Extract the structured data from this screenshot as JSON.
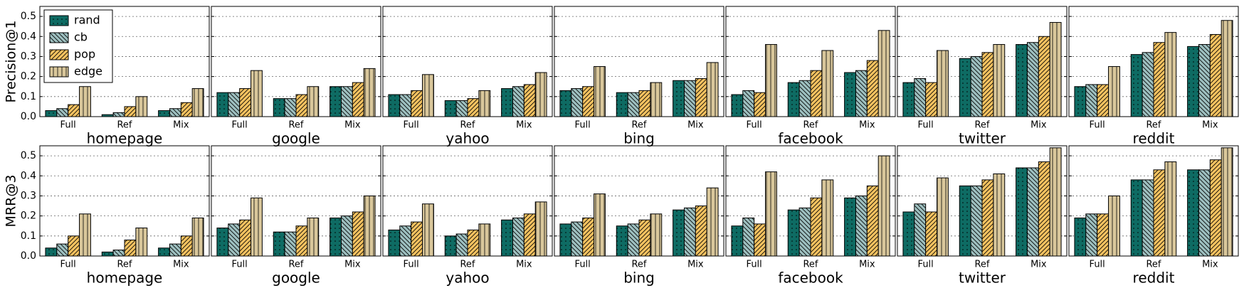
{
  "chart_data": [
    {
      "type": "bar",
      "ylabel": "Precision@1",
      "xlabel": "homepage",
      "legend": "upper left",
      "grid": true,
      "ylim": [
        0,
        0.55
      ],
      "yticks": [
        {
          "value": 0,
          "label": "0.0"
        },
        0.1,
        0.2,
        0.3,
        0.4,
        0.5
      ],
      "ytick_labels": true,
      "categories": [
        "Full",
        "Ref",
        "Mix"
      ],
      "series": [
        {
          "name": "rand",
          "color": "#0e6b63",
          "hatch": "dots",
          "values": [
            0.03,
            0.01,
            0.03
          ]
        },
        {
          "name": "cb",
          "color": "#9dbfbf",
          "hatch": "backslash",
          "values": [
            0.04,
            0.02,
            0.04
          ]
        },
        {
          "name": "pop",
          "color": "#f4c260",
          "hatch": "slash",
          "values": [
            0.06,
            0.05,
            0.07
          ]
        },
        {
          "name": "edge",
          "color": "#d9c79b",
          "hatch": "vertical",
          "values": [
            0.15,
            0.1,
            0.14
          ]
        }
      ]
    },
    {
      "type": "bar",
      "xlabel": "google",
      "grid": true,
      "ylim": [
        0,
        0.55
      ],
      "yticks": [
        0,
        0.1,
        0.2,
        0.3,
        0.4,
        0.5
      ],
      "ytick_labels": false,
      "categories": [
        "Full",
        "Ref",
        "Mix"
      ],
      "series": [
        {
          "color": "#0e6b63",
          "hatch": "dots",
          "values": [
            0.12,
            0.09,
            0.15
          ]
        },
        {
          "color": "#9dbfbf",
          "hatch": "backslash",
          "values": [
            0.12,
            0.09,
            0.15
          ]
        },
        {
          "color": "#f4c260",
          "hatch": "slash",
          "values": [
            0.14,
            0.11,
            0.17
          ]
        },
        {
          "color": "#d9c79b",
          "hatch": "vertical",
          "values": [
            0.23,
            0.15,
            0.24
          ]
        }
      ]
    },
    {
      "type": "bar",
      "xlabel": "yahoo",
      "grid": true,
      "ylim": [
        0,
        0.55
      ],
      "yticks": [
        0,
        0.1,
        0.2,
        0.3,
        0.4,
        0.5
      ],
      "ytick_labels": false,
      "categories": [
        "Full",
        "Ref",
        "Mix"
      ],
      "series": [
        {
          "color": "#0e6b63",
          "hatch": "dots",
          "values": [
            0.11,
            0.08,
            0.14
          ]
        },
        {
          "color": "#9dbfbf",
          "hatch": "backslash",
          "values": [
            0.11,
            0.08,
            0.15
          ]
        },
        {
          "color": "#f4c260",
          "hatch": "slash",
          "values": [
            0.13,
            0.09,
            0.16
          ]
        },
        {
          "color": "#d9c79b",
          "hatch": "vertical",
          "values": [
            0.21,
            0.13,
            0.22
          ]
        }
      ]
    },
    {
      "type": "bar",
      "xlabel": "bing",
      "grid": true,
      "ylim": [
        0,
        0.55
      ],
      "yticks": [
        0,
        0.1,
        0.2,
        0.3,
        0.4,
        0.5
      ],
      "ytick_labels": false,
      "categories": [
        "Full",
        "Ref",
        "Mix"
      ],
      "series": [
        {
          "color": "#0e6b63",
          "hatch": "dots",
          "values": [
            0.13,
            0.12,
            0.18
          ]
        },
        {
          "color": "#9dbfbf",
          "hatch": "backslash",
          "values": [
            0.14,
            0.12,
            0.18
          ]
        },
        {
          "color": "#f4c260",
          "hatch": "slash",
          "values": [
            0.15,
            0.13,
            0.19
          ]
        },
        {
          "color": "#d9c79b",
          "hatch": "vertical",
          "values": [
            0.25,
            0.17,
            0.27
          ]
        }
      ]
    },
    {
      "type": "bar",
      "xlabel": "facebook",
      "grid": true,
      "ylim": [
        0,
        0.55
      ],
      "yticks": [
        0,
        0.1,
        0.2,
        0.3,
        0.4,
        0.5
      ],
      "ytick_labels": false,
      "categories": [
        "Full",
        "Ref",
        "Mix"
      ],
      "series": [
        {
          "color": "#0e6b63",
          "hatch": "dots",
          "values": [
            0.11,
            0.17,
            0.22
          ]
        },
        {
          "color": "#9dbfbf",
          "hatch": "backslash",
          "values": [
            0.13,
            0.18,
            0.23
          ]
        },
        {
          "color": "#f4c260",
          "hatch": "slash",
          "values": [
            0.12,
            0.23,
            0.28
          ]
        },
        {
          "color": "#d9c79b",
          "hatch": "vertical",
          "values": [
            0.36,
            0.33,
            0.43
          ]
        }
      ]
    },
    {
      "type": "bar",
      "xlabel": "twitter",
      "grid": true,
      "ylim": [
        0,
        0.55
      ],
      "yticks": [
        0,
        0.1,
        0.2,
        0.3,
        0.4,
        0.5
      ],
      "ytick_labels": false,
      "categories": [
        "Full",
        "Ref",
        "Mix"
      ],
      "series": [
        {
          "color": "#0e6b63",
          "hatch": "dots",
          "values": [
            0.17,
            0.29,
            0.36
          ]
        },
        {
          "color": "#9dbfbf",
          "hatch": "backslash",
          "values": [
            0.19,
            0.3,
            0.37
          ]
        },
        {
          "color": "#f4c260",
          "hatch": "slash",
          "values": [
            0.17,
            0.32,
            0.4
          ]
        },
        {
          "color": "#d9c79b",
          "hatch": "vertical",
          "values": [
            0.33,
            0.36,
            0.47
          ]
        }
      ]
    },
    {
      "type": "bar",
      "xlabel": "reddit",
      "grid": true,
      "ylim": [
        0,
        0.55
      ],
      "yticks": [
        0,
        0.1,
        0.2,
        0.3,
        0.4,
        0.5
      ],
      "ytick_labels": false,
      "categories": [
        "Full",
        "Ref",
        "Mix"
      ],
      "series": [
        {
          "color": "#0e6b63",
          "hatch": "dots",
          "values": [
            0.15,
            0.31,
            0.35
          ]
        },
        {
          "color": "#9dbfbf",
          "hatch": "backslash",
          "values": [
            0.16,
            0.32,
            0.36
          ]
        },
        {
          "color": "#f4c260",
          "hatch": "slash",
          "values": [
            0.16,
            0.37,
            0.41
          ]
        },
        {
          "color": "#d9c79b",
          "hatch": "vertical",
          "values": [
            0.25,
            0.42,
            0.48
          ]
        }
      ]
    },
    {
      "type": "bar",
      "ylabel": "MRR@3",
      "xlabel": "homepage",
      "grid": true,
      "ylim": [
        0,
        0.55
      ],
      "yticks": [
        {
          "value": 0,
          "label": "0.0"
        },
        0.1,
        0.2,
        0.3,
        0.4,
        0.5
      ],
      "ytick_labels": true,
      "categories": [
        "Full",
        "Ref",
        "Mix"
      ],
      "series": [
        {
          "color": "#0e6b63",
          "hatch": "dots",
          "values": [
            0.04,
            0.02,
            0.04
          ]
        },
        {
          "color": "#9dbfbf",
          "hatch": "backslash",
          "values": [
            0.06,
            0.03,
            0.06
          ]
        },
        {
          "color": "#f4c260",
          "hatch": "slash",
          "values": [
            0.1,
            0.08,
            0.1
          ]
        },
        {
          "color": "#d9c79b",
          "hatch": "vertical",
          "values": [
            0.21,
            0.14,
            0.19
          ]
        }
      ]
    },
    {
      "type": "bar",
      "xlabel": "google",
      "grid": true,
      "ylim": [
        0,
        0.55
      ],
      "yticks": [
        0,
        0.1,
        0.2,
        0.3,
        0.4,
        0.5
      ],
      "ytick_labels": false,
      "categories": [
        "Full",
        "Ref",
        "Mix"
      ],
      "series": [
        {
          "color": "#0e6b63",
          "hatch": "dots",
          "values": [
            0.14,
            0.12,
            0.19
          ]
        },
        {
          "color": "#9dbfbf",
          "hatch": "backslash",
          "values": [
            0.16,
            0.12,
            0.2
          ]
        },
        {
          "color": "#f4c260",
          "hatch": "slash",
          "values": [
            0.18,
            0.15,
            0.22
          ]
        },
        {
          "color": "#d9c79b",
          "hatch": "vertical",
          "values": [
            0.29,
            0.19,
            0.3
          ]
        }
      ]
    },
    {
      "type": "bar",
      "xlabel": "yahoo",
      "grid": true,
      "ylim": [
        0,
        0.55
      ],
      "yticks": [
        0,
        0.1,
        0.2,
        0.3,
        0.4,
        0.5
      ],
      "ytick_labels": false,
      "categories": [
        "Full",
        "Ref",
        "Mix"
      ],
      "series": [
        {
          "color": "#0e6b63",
          "hatch": "dots",
          "values": [
            0.13,
            0.1,
            0.18
          ]
        },
        {
          "color": "#9dbfbf",
          "hatch": "backslash",
          "values": [
            0.15,
            0.11,
            0.19
          ]
        },
        {
          "color": "#f4c260",
          "hatch": "slash",
          "values": [
            0.17,
            0.13,
            0.21
          ]
        },
        {
          "color": "#d9c79b",
          "hatch": "vertical",
          "values": [
            0.26,
            0.16,
            0.27
          ]
        }
      ]
    },
    {
      "type": "bar",
      "xlabel": "bing",
      "grid": true,
      "ylim": [
        0,
        0.55
      ],
      "yticks": [
        0,
        0.1,
        0.2,
        0.3,
        0.4,
        0.5
      ],
      "ytick_labels": false,
      "categories": [
        "Full",
        "Ref",
        "Mix"
      ],
      "series": [
        {
          "color": "#0e6b63",
          "hatch": "dots",
          "values": [
            0.16,
            0.15,
            0.23
          ]
        },
        {
          "color": "#9dbfbf",
          "hatch": "backslash",
          "values": [
            0.17,
            0.16,
            0.24
          ]
        },
        {
          "color": "#f4c260",
          "hatch": "slash",
          "values": [
            0.19,
            0.18,
            0.25
          ]
        },
        {
          "color": "#d9c79b",
          "hatch": "vertical",
          "values": [
            0.31,
            0.21,
            0.34
          ]
        }
      ]
    },
    {
      "type": "bar",
      "xlabel": "facebook",
      "grid": true,
      "ylim": [
        0,
        0.55
      ],
      "yticks": [
        0,
        0.1,
        0.2,
        0.3,
        0.4,
        0.5
      ],
      "ytick_labels": false,
      "categories": [
        "Full",
        "Ref",
        "Mix"
      ],
      "series": [
        {
          "color": "#0e6b63",
          "hatch": "dots",
          "values": [
            0.15,
            0.23,
            0.29
          ]
        },
        {
          "color": "#9dbfbf",
          "hatch": "backslash",
          "values": [
            0.19,
            0.24,
            0.3
          ]
        },
        {
          "color": "#f4c260",
          "hatch": "slash",
          "values": [
            0.16,
            0.29,
            0.35
          ]
        },
        {
          "color": "#d9c79b",
          "hatch": "vertical",
          "values": [
            0.42,
            0.38,
            0.5
          ]
        }
      ]
    },
    {
      "type": "bar",
      "xlabel": "twitter",
      "grid": true,
      "ylim": [
        0,
        0.55
      ],
      "yticks": [
        0,
        0.1,
        0.2,
        0.3,
        0.4,
        0.5
      ],
      "ytick_labels": false,
      "categories": [
        "Full",
        "Ref",
        "Mix"
      ],
      "series": [
        {
          "color": "#0e6b63",
          "hatch": "dots",
          "values": [
            0.22,
            0.35,
            0.44
          ]
        },
        {
          "color": "#9dbfbf",
          "hatch": "backslash",
          "values": [
            0.26,
            0.35,
            0.44
          ]
        },
        {
          "color": "#f4c260",
          "hatch": "slash",
          "values": [
            0.22,
            0.38,
            0.47
          ]
        },
        {
          "color": "#d9c79b",
          "hatch": "vertical",
          "values": [
            0.39,
            0.41,
            0.54
          ]
        }
      ]
    },
    {
      "type": "bar",
      "xlabel": "reddit",
      "grid": true,
      "ylim": [
        0,
        0.55
      ],
      "yticks": [
        0,
        0.1,
        0.2,
        0.3,
        0.4,
        0.5
      ],
      "ytick_labels": false,
      "categories": [
        "Full",
        "Ref",
        "Mix"
      ],
      "series": [
        {
          "color": "#0e6b63",
          "hatch": "dots",
          "values": [
            0.19,
            0.38,
            0.43
          ]
        },
        {
          "color": "#9dbfbf",
          "hatch": "backslash",
          "values": [
            0.21,
            0.38,
            0.43
          ]
        },
        {
          "color": "#f4c260",
          "hatch": "slash",
          "values": [
            0.21,
            0.43,
            0.48
          ]
        },
        {
          "color": "#d9c79b",
          "hatch": "vertical",
          "values": [
            0.3,
            0.47,
            0.54
          ]
        }
      ]
    }
  ]
}
